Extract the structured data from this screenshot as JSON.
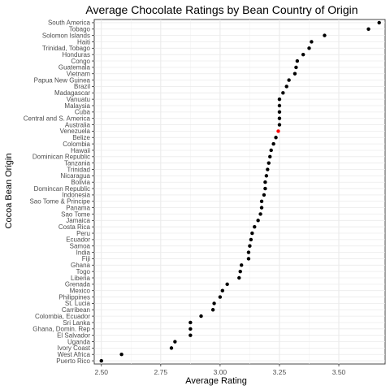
{
  "chart_data": {
    "type": "scatter",
    "title": "Average Chocolate Ratings by Bean Country of Origin",
    "xlabel": "Average Rating",
    "ylabel": "Cocoa Bean Origin",
    "xlim": [
      2.47,
      3.695
    ],
    "x_ticks": [
      2.5,
      2.75,
      3.0,
      3.25,
      3.5
    ],
    "x_tick_labels": [
      "2.50",
      "2.75",
      "3.00",
      "3.25",
      "3.50"
    ],
    "grid": true,
    "highlight_color": "#ff0000",
    "point_color": "#000000",
    "points": [
      {
        "origin": "South America",
        "rating": 3.67
      },
      {
        "origin": "Tobago",
        "rating": 3.625
      },
      {
        "origin": "Solomon Islands",
        "rating": 3.44
      },
      {
        "origin": "Haiti",
        "rating": 3.385
      },
      {
        "origin": "Trinidad, Tobago",
        "rating": 3.375
      },
      {
        "origin": "Honduras",
        "rating": 3.35
      },
      {
        "origin": "Congo",
        "rating": 3.325
      },
      {
        "origin": "Guatemala",
        "rating": 3.32
      },
      {
        "origin": "Vietnam",
        "rating": 3.315
      },
      {
        "origin": "Papua New Guinea",
        "rating": 3.29
      },
      {
        "origin": "Brazil",
        "rating": 3.28
      },
      {
        "origin": "Madagascar",
        "rating": 3.265
      },
      {
        "origin": "Vanuatu",
        "rating": 3.25
      },
      {
        "origin": "Malaysia",
        "rating": 3.25
      },
      {
        "origin": "Cuba",
        "rating": 3.25
      },
      {
        "origin": "Central and S. America",
        "rating": 3.25
      },
      {
        "origin": "Australia",
        "rating": 3.25
      },
      {
        "origin": "Venezuela",
        "rating": 3.245,
        "highlight": true
      },
      {
        "origin": "Belize",
        "rating": 3.235
      },
      {
        "origin": "Colombia",
        "rating": 3.225
      },
      {
        "origin": "Hawaii",
        "rating": 3.215
      },
      {
        "origin": "Dominican Republic",
        "rating": 3.21
      },
      {
        "origin": "Tanzania",
        "rating": 3.205
      },
      {
        "origin": "Trinidad",
        "rating": 3.2
      },
      {
        "origin": "Nicaragua",
        "rating": 3.195
      },
      {
        "origin": "Bolivia",
        "rating": 3.19
      },
      {
        "origin": "Domincan Republic",
        "rating": 3.19
      },
      {
        "origin": "Indonesia",
        "rating": 3.185
      },
      {
        "origin": "Sao Tome & Principe",
        "rating": 3.175
      },
      {
        "origin": "Panama",
        "rating": 3.175
      },
      {
        "origin": "Sao Tome",
        "rating": 3.17
      },
      {
        "origin": "Jamaica",
        "rating": 3.16
      },
      {
        "origin": "Costa Rica",
        "rating": 3.145
      },
      {
        "origin": "Peru",
        "rating": 3.135
      },
      {
        "origin": "Ecuador",
        "rating": 3.13
      },
      {
        "origin": "Samoa",
        "rating": 3.125
      },
      {
        "origin": "India",
        "rating": 3.12
      },
      {
        "origin": "Fiji",
        "rating": 3.12
      },
      {
        "origin": "Ghana",
        "rating": 3.09
      },
      {
        "origin": "Togo",
        "rating": 3.085
      },
      {
        "origin": "Liberia",
        "rating": 3.08
      },
      {
        "origin": "Grenada",
        "rating": 3.03
      },
      {
        "origin": "Mexico",
        "rating": 3.01
      },
      {
        "origin": "Philippines",
        "rating": 3.0
      },
      {
        "origin": "St. Lucia",
        "rating": 2.975
      },
      {
        "origin": "Carribean",
        "rating": 2.97
      },
      {
        "origin": "Colombia, Ecuador",
        "rating": 2.92
      },
      {
        "origin": "Sri Lanka",
        "rating": 2.875
      },
      {
        "origin": "Ghana, Domin. Rep",
        "rating": 2.875
      },
      {
        "origin": "El Salvador",
        "rating": 2.875
      },
      {
        "origin": "Uganda",
        "rating": 2.81
      },
      {
        "origin": "Ivory Coast",
        "rating": 2.795
      },
      {
        "origin": "West Africa",
        "rating": 2.585
      },
      {
        "origin": "Puerto Rico",
        "rating": 2.5
      }
    ]
  }
}
